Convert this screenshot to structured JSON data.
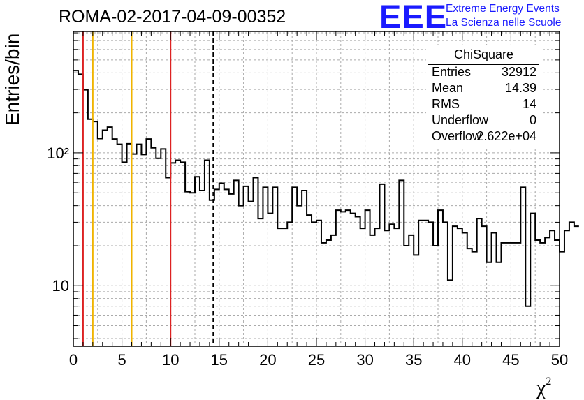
{
  "title": "ROMA-02-2017-04-09-00352",
  "logo": {
    "mark": "EEE",
    "line1": "Extreme Energy Events",
    "line2": "La Scienza nelle Scuole"
  },
  "stats": {
    "title": "ChiSquare",
    "rows": [
      {
        "label": "Entries",
        "value": "32912"
      },
      {
        "label": "Mean",
        "value": "14.39"
      },
      {
        "label": "RMS",
        "value": "14"
      },
      {
        "label": "Underflow",
        "value": "0"
      },
      {
        "label": "Overflow",
        "value": "2.622e+04"
      }
    ]
  },
  "chart_data": {
    "type": "histogram",
    "ylabel": "Entries/bin",
    "xlabel": "χ²",
    "xlim": [
      0,
      50
    ],
    "ylim": [
      3.5,
      820
    ],
    "yscale": "log",
    "grid": true,
    "bin_width": 0.5,
    "x_ticks": [
      0,
      5,
      10,
      15,
      20,
      25,
      30,
      35,
      40,
      45,
      50
    ],
    "y_tick_labels": [
      "10",
      "10²"
    ],
    "values": [
      416,
      390,
      298,
      179,
      172,
      128,
      148,
      156,
      127,
      116,
      85,
      117,
      98,
      116,
      97,
      127,
      109,
      91,
      107,
      65,
      84,
      88,
      85,
      51,
      50,
      66,
      52,
      88,
      44,
      53,
      59,
      53,
      49,
      62,
      40,
      56,
      43,
      65,
      32,
      55,
      35,
      55,
      27,
      27,
      30,
      55,
      40,
      52,
      34,
      30,
      31,
      21,
      22,
      24,
      37,
      36,
      37,
      35,
      33,
      27,
      37,
      24,
      27,
      58,
      26,
      29,
      27,
      62,
      20,
      24,
      17,
      31,
      31,
      30,
      20,
      37,
      30,
      11,
      28,
      27,
      25,
      19,
      18,
      32,
      28,
      15,
      25,
      15,
      21,
      21,
      21,
      21,
      55,
      7,
      35,
      22,
      21,
      23,
      26,
      22,
      18,
      26,
      30,
      28
    ],
    "lines": [
      {
        "x": 1,
        "color": "#dd2222",
        "style": "solid"
      },
      {
        "x": 2,
        "color": "#f0b400",
        "style": "solid"
      },
      {
        "x": 6,
        "color": "#f0b400",
        "style": "solid"
      },
      {
        "x": 10,
        "color": "#dd2222",
        "style": "solid"
      },
      {
        "x": 14.39,
        "color": "#000000",
        "style": "dashed"
      }
    ]
  }
}
